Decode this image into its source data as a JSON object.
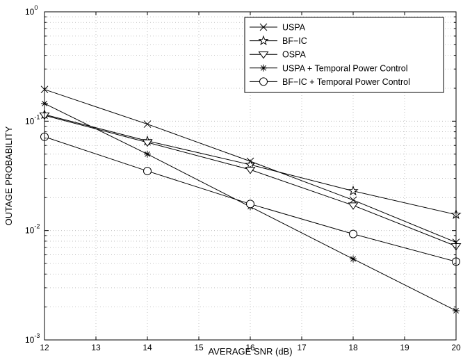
{
  "chart_data": {
    "type": "line",
    "title": "",
    "xlabel": "AVERAGE SNR (dB)",
    "ylabel": "OUTAGE PROBABILITY",
    "xlim": [
      12,
      20
    ],
    "ylim": [
      0.001,
      1
    ],
    "yscale": "log",
    "grid": true,
    "legend_position": "top-right",
    "x_ticks": [
      12,
      13,
      14,
      15,
      16,
      17,
      18,
      19,
      20
    ],
    "x_tick_labels": [
      "12",
      "13",
      "14",
      "15",
      "16",
      "17",
      "18",
      "19",
      "20"
    ],
    "y_ticks": [
      0.001,
      0.01,
      0.1,
      1
    ],
    "y_tick_labels": [
      {
        "base": "10",
        "exp": "-3"
      },
      {
        "base": "10",
        "exp": "-2"
      },
      {
        "base": "10",
        "exp": "-1"
      },
      {
        "base": "10",
        "exp": "0"
      }
    ],
    "x": [
      12,
      14,
      16,
      18,
      20
    ],
    "series": [
      {
        "name": "USPA",
        "marker": "x",
        "values": [
          0.195,
          0.094,
          0.043,
          0.019,
          0.0078
        ]
      },
      {
        "name": "BF−IC",
        "marker": "pentagram",
        "values": [
          0.115,
          0.066,
          0.04,
          0.023,
          0.014
        ]
      },
      {
        "name": "OSPA",
        "marker": "triangle-down",
        "values": [
          0.113,
          0.064,
          0.036,
          0.017,
          0.0072
        ]
      },
      {
        "name": "USPA + Temporal Power Control",
        "marker": "asterisk",
        "values": [
          0.145,
          0.05,
          0.0165,
          0.0055,
          0.00185
        ]
      },
      {
        "name": "BF−IC + Temporal Power Control",
        "marker": "circle",
        "values": [
          0.072,
          0.035,
          0.0175,
          0.0093,
          0.0052
        ]
      }
    ],
    "colors": {
      "line": "#000000",
      "grid": "#b4b4b4",
      "background": "#ffffff"
    }
  }
}
